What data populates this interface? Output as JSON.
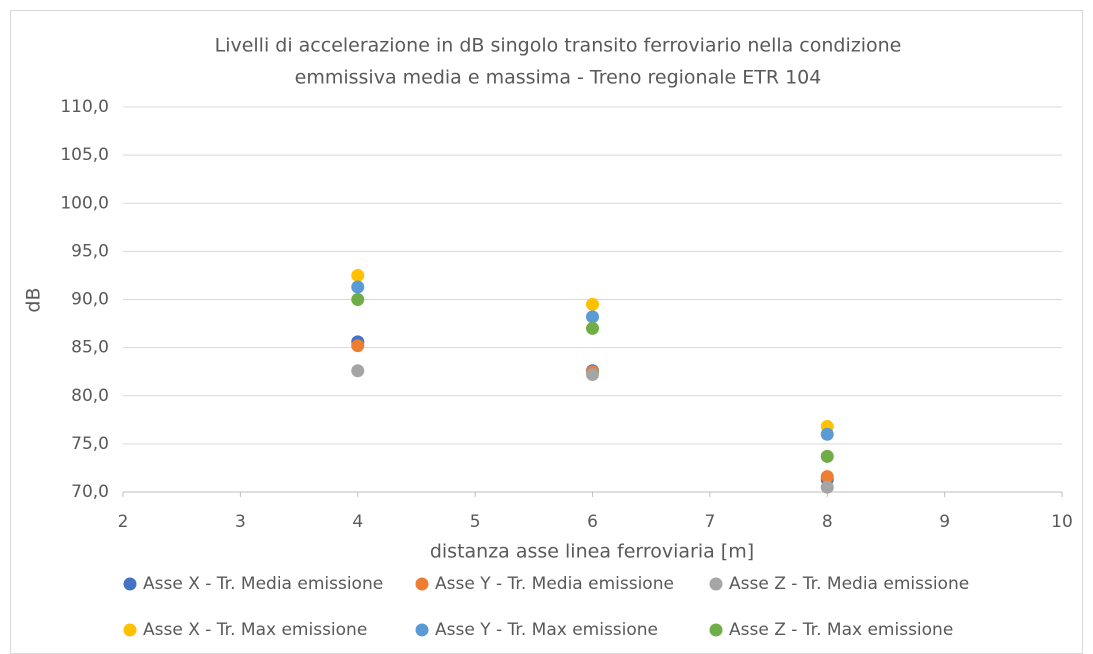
{
  "chart_data": {
    "type": "scatter",
    "title": [
      "Livelli di accelerazione in dB singolo transito ferroviario nella condizione",
      "emmissiva media e massima - Treno regionale ETR 104"
    ],
    "x_label": "distanza asse linea ferroviaria [m]",
    "y_label": "dB",
    "x": [
      4,
      6,
      8
    ],
    "series": [
      {
        "name": "Asse X - Tr. Media emissione",
        "color": "#4472c4",
        "values": [
          85.6,
          82.6,
          71.3
        ]
      },
      {
        "name": "Asse Y - Tr. Media emissione",
        "color": "#ed7d31",
        "values": [
          85.2,
          82.5,
          71.6
        ]
      },
      {
        "name": "Asse Z - Tr. Media emissione",
        "color": "#a5a5a5",
        "values": [
          82.6,
          82.2,
          70.5
        ]
      },
      {
        "name": "Asse X - Tr. Max emissione",
        "color": "#ffc000",
        "values": [
          92.5,
          89.5,
          76.8
        ]
      },
      {
        "name": "Asse Y - Tr. Max emissione",
        "color": "#5b9bd5",
        "values": [
          91.3,
          88.2,
          76.0
        ]
      },
      {
        "name": "Asse Z - Tr. Max emissione",
        "color": "#70ad47",
        "values": [
          90.0,
          87.0,
          73.7
        ]
      }
    ],
    "xlim": [
      2,
      10
    ],
    "xticks": [
      2,
      3,
      4,
      5,
      6,
      7,
      8,
      9,
      10
    ],
    "ylim": [
      70,
      110
    ],
    "yticks": [
      {
        "value": 70,
        "label": "70,0"
      },
      {
        "value": 75,
        "label": "75,0"
      },
      {
        "value": 80,
        "label": "80,0"
      },
      {
        "value": 85,
        "label": "85,0"
      },
      {
        "value": 90,
        "label": "90,0"
      },
      {
        "value": 95,
        "label": "95,0"
      },
      {
        "value": 100,
        "label": "100,0"
      },
      {
        "value": 105,
        "label": "105,0"
      },
      {
        "value": 110,
        "label": "110,0"
      }
    ],
    "grid": true,
    "legend": "bottom"
  }
}
